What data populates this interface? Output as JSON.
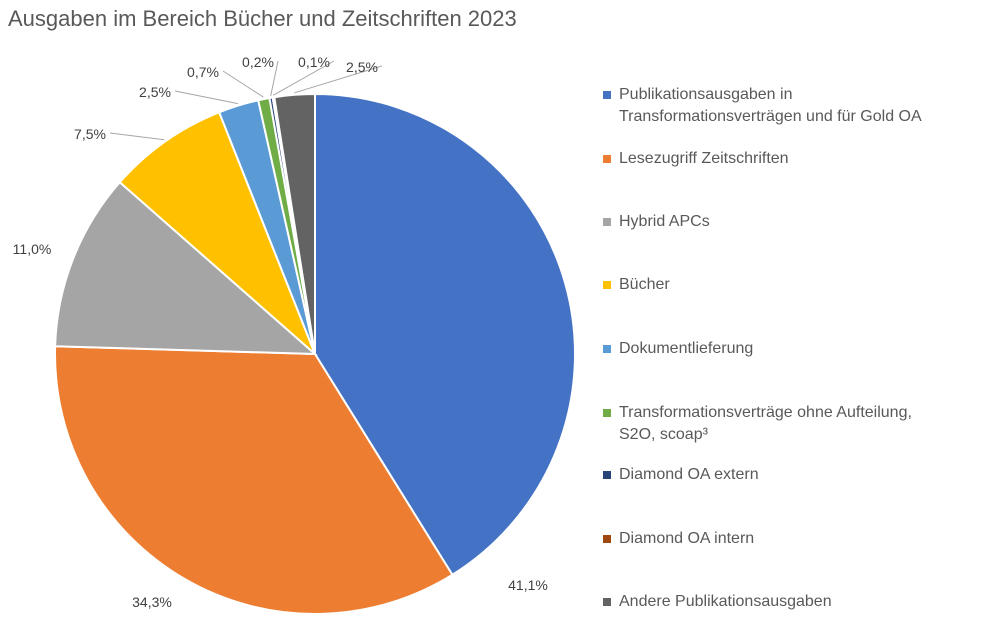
{
  "chart_data": {
    "type": "pie",
    "title": "Ausgaben im Bereich Bücher und Zeitschriften 2023",
    "legend_position": "right",
    "slices": [
      {
        "label": "Publikationsausgaben in Transformationsverträgen und für Gold OA",
        "value": 41.1,
        "display": "41,1%",
        "color": "#4472C4"
      },
      {
        "label": "Lesezugriff Zeitschriften",
        "value": 34.3,
        "display": "34,3%",
        "color": "#ED7D31"
      },
      {
        "label": "Hybrid APCs",
        "value": 11.0,
        "display": "11,0%",
        "color": "#A5A5A5"
      },
      {
        "label": "Bücher",
        "value": 7.5,
        "display": "7,5%",
        "color": "#FFC000"
      },
      {
        "label": "Dokumentlieferung",
        "value": 2.5,
        "display": "2,5%",
        "color": "#5B9BD5"
      },
      {
        "label": "Transformationsverträge ohne Aufteilung, S2O, scoap³",
        "value": 0.7,
        "display": "0,7%",
        "color": "#70AD47"
      },
      {
        "label": "Diamond OA extern",
        "value": 0.2,
        "display": "0,2%",
        "color": "#264478"
      },
      {
        "label": "Diamond OA intern",
        "value": 0.1,
        "display": "0,1%",
        "color": "#9E480E"
      },
      {
        "label": "Andere Publikationsausgaben",
        "value": 2.5,
        "display": "2,5%",
        "color": "#636363"
      }
    ]
  },
  "legend": {
    "items": [
      {
        "label": "Publikationsausgaben in\nTransformationsverträgen und für Gold OA"
      },
      {
        "label": "Lesezugriff Zeitschriften"
      },
      {
        "label": "Hybrid APCs"
      },
      {
        "label": "Bücher"
      },
      {
        "label": "Dokumentlieferung"
      },
      {
        "label": "Transformationsverträge ohne Aufteilung,\nS2O, scoap³"
      },
      {
        "label": "Diamond OA extern"
      },
      {
        "label": "Diamond OA intern"
      },
      {
        "label": "Andere Publikationsausgaben"
      }
    ]
  }
}
